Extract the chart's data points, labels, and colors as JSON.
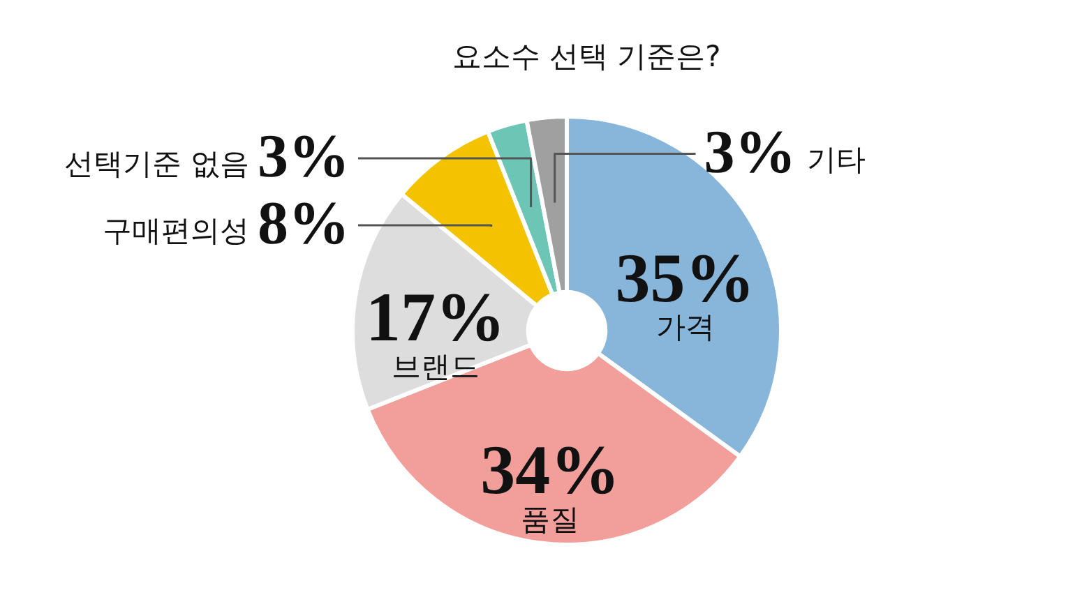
{
  "chart_data": {
    "type": "donut",
    "title": "요소수 선택 기준은?",
    "categories": [
      "가격",
      "품질",
      "브랜드",
      "구매편의성",
      "선택기준 없음",
      "기타"
    ],
    "values": [
      35,
      34,
      17,
      8,
      3,
      3
    ],
    "colors": [
      "#88b5da",
      "#f29f9b",
      "#dddddd",
      "#f4c300",
      "#6dc5b6",
      "#a0a0a0"
    ],
    "value_labels": [
      "35%",
      "34%",
      "17%",
      "8%",
      "3%",
      "3%"
    ],
    "legend": false
  }
}
